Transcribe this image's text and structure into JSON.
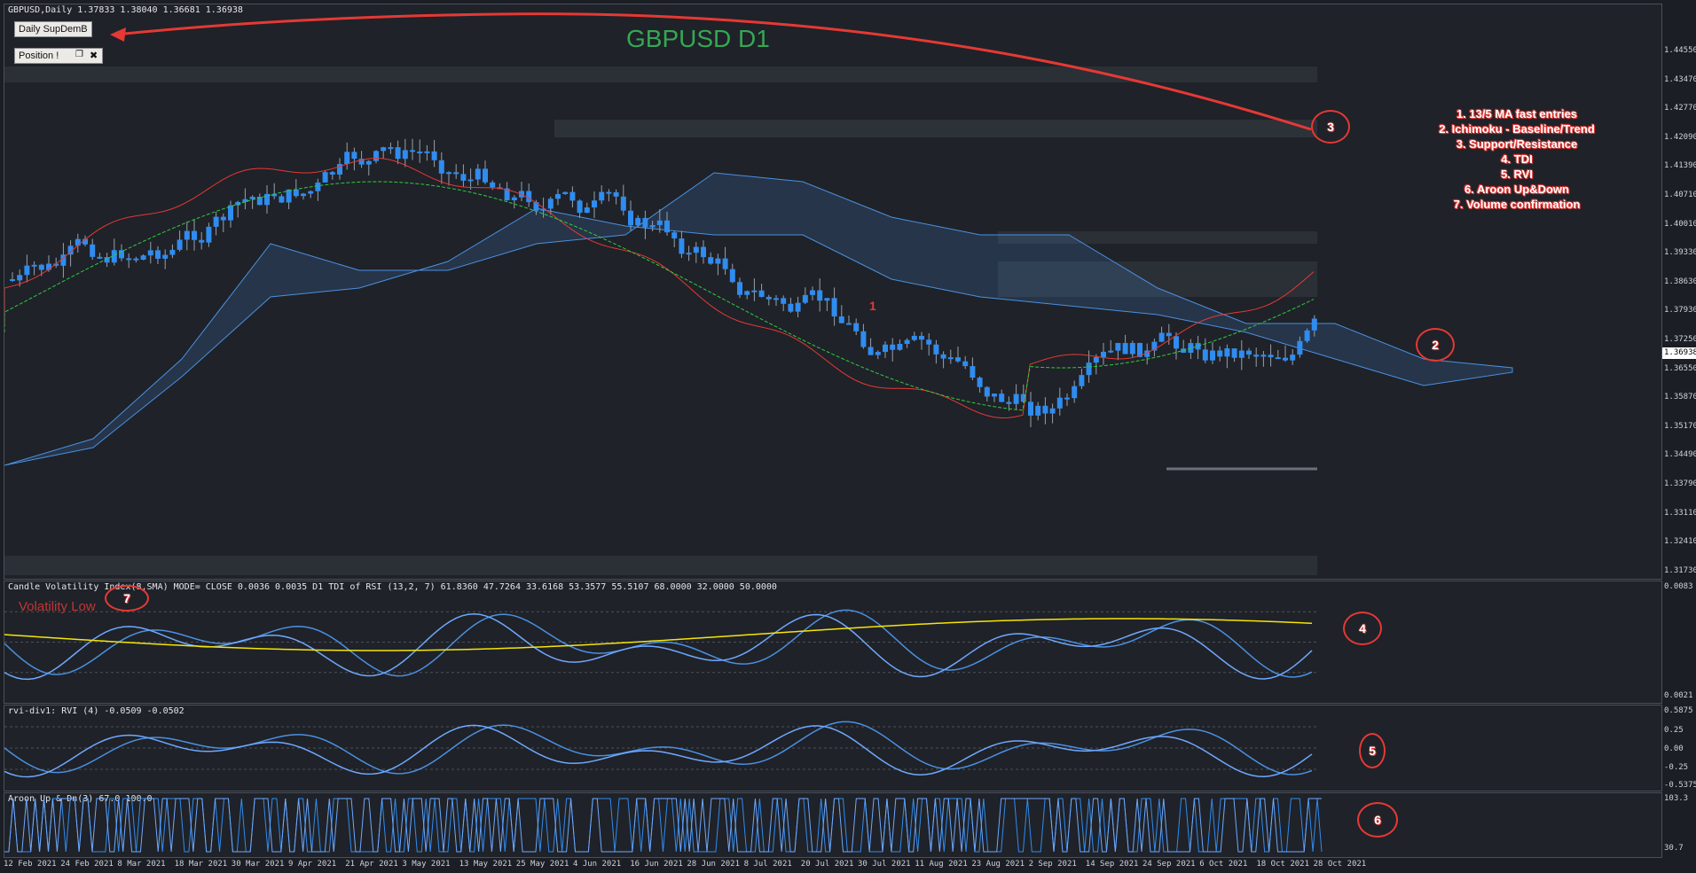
{
  "main": {
    "header": "GBPUSD,Daily  1.37833 1.38040 1.36681 1.36938",
    "title": "GBPUSD D1",
    "buttons": {
      "daily": "Daily SupDemB",
      "position": "Position !"
    },
    "current_price": "1.36938",
    "candle_label": "1",
    "price_ticks": [
      "1.44550",
      "1.43470",
      "1.42770",
      "1.42090",
      "1.41390",
      "1.40710",
      "1.40010",
      "1.39330",
      "1.38630",
      "1.37930",
      "1.37250",
      "1.36550",
      "1.35870",
      "1.35170",
      "1.34490",
      "1.33790",
      "1.33110",
      "1.32410",
      "1.31730"
    ],
    "legend": [
      "1. 13/5 MA fast entries",
      "2. Ichimoku - Baseline/Trend",
      "3. Support/Resistance",
      "4. TDI",
      "5. RVI",
      "6. Aroon Up&Down",
      "7. Volume confirmation"
    ]
  },
  "markers": {
    "m2": "2",
    "m3": "3",
    "m4": "4",
    "m5": "5",
    "m6": "6",
    "m7": "7"
  },
  "tdi": {
    "header": "Candle Volatility Index(8,SMA) MODE= CLOSE 0.0036 0.0035  D1 TDI of RSI  (13,2, 7) 61.8360 47.7264 33.6168 53.3577 55.5107 68.0000 32.0000 50.0000",
    "overlay": "Volatility Low",
    "ticks": [
      "0.0083",
      "0.0021"
    ]
  },
  "rvi": {
    "header": "rvi-div1: RVI (4) -0.0509 -0.0502",
    "ticks": [
      "0.5875",
      "0.25",
      "0.00",
      "-0.25",
      "-0.5375"
    ]
  },
  "aroon": {
    "header": "Aroon Up & Dn(3) 67.0 100.0",
    "ticks": [
      "103.3",
      "30.7"
    ]
  },
  "time_ticks": [
    "12 Feb 2021",
    "24 Feb 2021",
    "8 Mar 2021",
    "18 Mar 2021",
    "30 Mar 2021",
    "9 Apr 2021",
    "21 Apr 2021",
    "3 May 2021",
    "13 May 2021",
    "25 May 2021",
    "4 Jun 2021",
    "16 Jun 2021",
    "28 Jun 2021",
    "8 Jul 2021",
    "20 Jul 2021",
    "30 Jul 2021",
    "11 Aug 2021",
    "23 Aug 2021",
    "2 Sep 2021",
    "14 Sep 2021",
    "24 Sep 2021",
    "6 Oct 2021",
    "18 Oct 2021",
    "28 Oct 2021"
  ],
  "colors": {
    "bull": "#2f8cf0",
    "cloud": "#4a90e2",
    "accent": "#e53935",
    "title": "#34a853",
    "signal": "#f5e50a"
  }
}
